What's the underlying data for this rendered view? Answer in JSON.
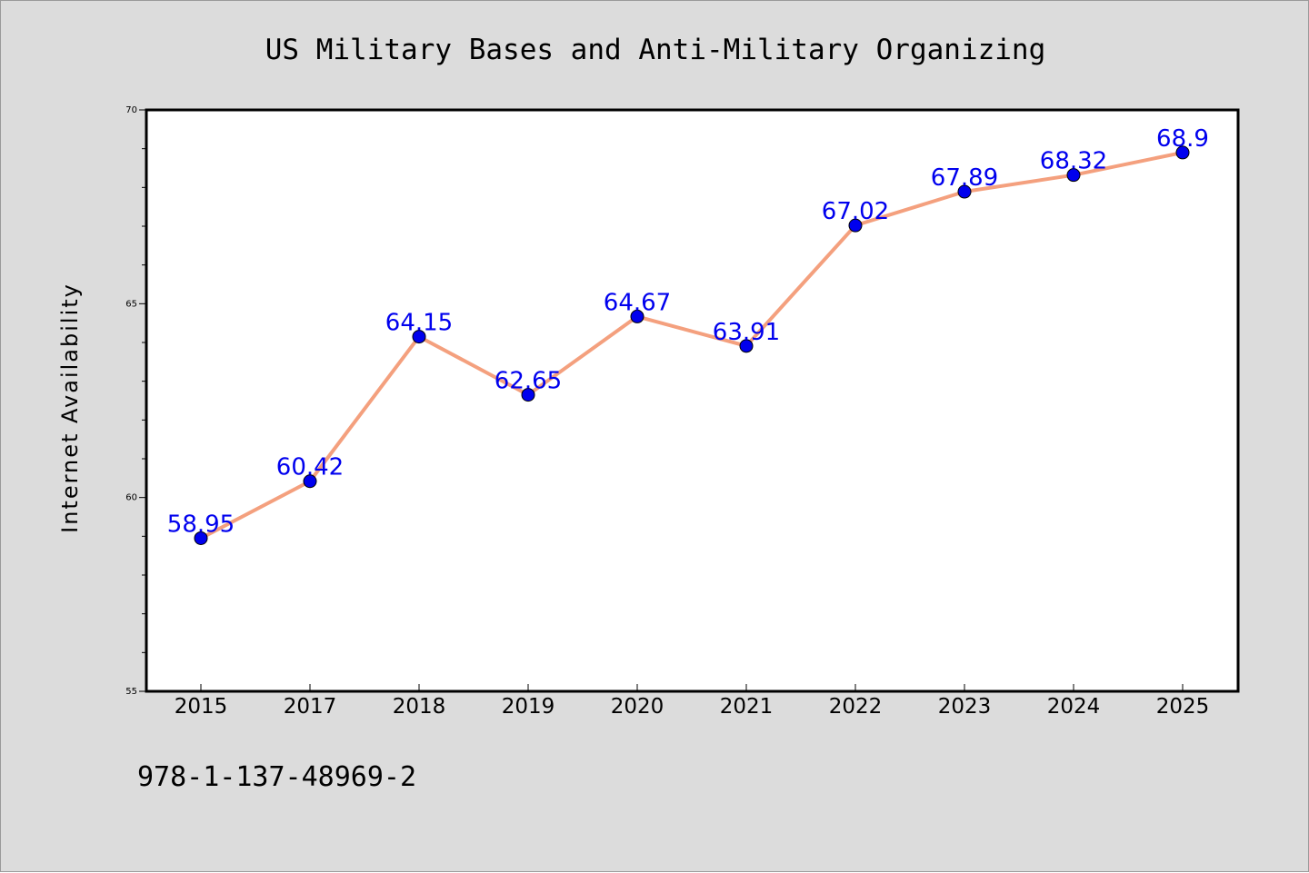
{
  "chart_data": {
    "type": "line",
    "title": "US Military Bases and Anti-Military Organizing",
    "xlabel": "",
    "ylabel": "Internet Availability",
    "categories": [
      "2015",
      "2017",
      "2018",
      "2019",
      "2020",
      "2021",
      "2022",
      "2023",
      "2024",
      "2025"
    ],
    "series": [
      {
        "values": [
          58.95,
          60.42,
          64.15,
          62.65,
          64.67,
          63.91,
          67.02,
          67.89,
          68.32,
          68.9
        ],
        "data_labels": [
          "58.95",
          "60.42",
          "64.15",
          "62.65",
          "64.67",
          "63.91",
          "67.02",
          "67.89",
          "68.32",
          "68.9"
        ],
        "line_color": "#f4a07e",
        "marker_color": "#0000ee",
        "label_color": "#0000ee"
      }
    ],
    "ylim": [
      55,
      70
    ],
    "y_major_ticks": [
      55,
      60,
      65,
      70
    ],
    "y_minor_step": 1,
    "grid": false,
    "legend": "none"
  },
  "footer": {
    "isbn": "978-1-137-48969-2"
  },
  "colors": {
    "figure_background": "#dcdcdc",
    "plot_background": "#ffffff",
    "axes_edge": "#000000"
  }
}
